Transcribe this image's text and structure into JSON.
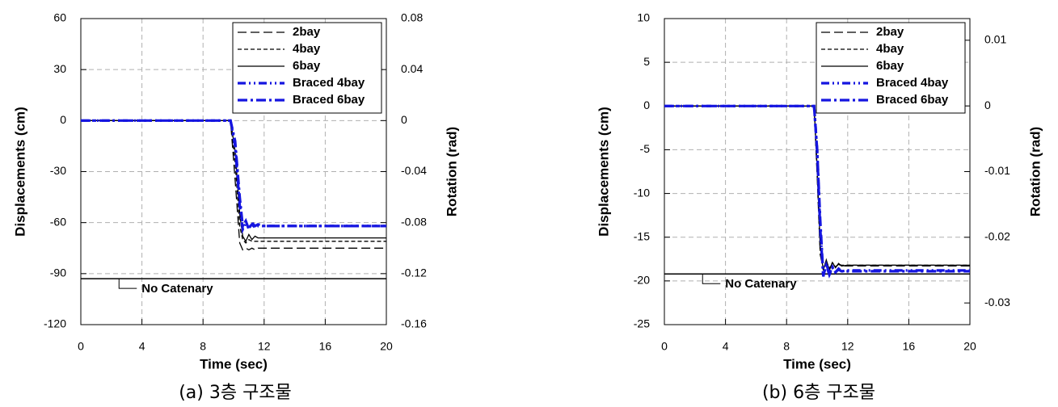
{
  "chart_data": [
    {
      "type": "line",
      "caption": "(a) 3층 구조물",
      "xlabel": "Time (sec)",
      "ylabel": "Displacements (cm)",
      "y2label": "Rotation (rad)",
      "xlim": [
        0,
        20
      ],
      "xticks": [
        0,
        4,
        8,
        12,
        16,
        20
      ],
      "ylim": [
        -120,
        60
      ],
      "yticks": [
        60,
        30,
        0,
        -30,
        -60,
        -90,
        -120
      ],
      "y2lim": [
        -0.16,
        0.08
      ],
      "y2ticks": [
        0.08,
        0.04,
        0,
        -0.04,
        -0.08,
        -0.12,
        -0.16
      ],
      "grid": true,
      "legend": "upper right",
      "x": [
        0,
        9.8,
        10.1,
        10.4,
        10.6,
        10.8,
        11.0,
        11.2,
        11.4,
        11.6,
        12,
        14,
        16,
        18,
        20
      ],
      "series": [
        {
          "name": "2bay",
          "color": "#000000",
          "style": "long-dash",
          "values": [
            0,
            0,
            -35,
            -72,
            -76,
            -75,
            -76,
            -75,
            -76,
            -75,
            -75,
            -75,
            -75,
            -75,
            -75
          ]
        },
        {
          "name": "4bay",
          "color": "#000000",
          "style": "short-dash",
          "values": [
            0,
            0,
            -25,
            -62,
            -70,
            -72,
            -70,
            -71,
            -71,
            -71,
            -71,
            -71,
            -71,
            -71,
            -71
          ]
        },
        {
          "name": "6bay",
          "color": "#000000",
          "style": "solid",
          "values": [
            0,
            0,
            -18,
            -55,
            -68,
            -71,
            -67,
            -70,
            -68,
            -69,
            -69,
            -69,
            -69,
            -69,
            -69
          ]
        },
        {
          "name": "Braced 4bay",
          "color": "#1515e0",
          "style": "dash-dot-dot",
          "values": [
            0,
            0,
            -15,
            -50,
            -64,
            -60,
            -63,
            -61,
            -63,
            -62,
            -62,
            -62,
            -62,
            -62,
            -62
          ]
        },
        {
          "name": "Braced 6bay",
          "color": "#1515e0",
          "style": "dash-dot",
          "values": [
            0,
            0,
            -12,
            -45,
            -62,
            -59,
            -64,
            -60,
            -62,
            -61,
            -62,
            -62,
            -62,
            -62,
            -62
          ]
        }
      ],
      "reference_line": {
        "label": "No Catenary",
        "value": -93,
        "label_x": 2.5
      }
    },
    {
      "type": "line",
      "caption": "(b) 6층 구조물",
      "xlabel": "Time (sec)",
      "ylabel": "Displacements (cm)",
      "y2label": "Rotation (rad)",
      "xlim": [
        0,
        20
      ],
      "xticks": [
        0,
        4,
        8,
        12,
        16,
        20
      ],
      "ylim": [
        -25,
        10
      ],
      "yticks": [
        10,
        5,
        0,
        -5,
        -10,
        -15,
        -20,
        -25
      ],
      "y2lim": [
        -0.0333,
        0.0133
      ],
      "y2ticks": [
        0.01,
        0,
        -0.01,
        -0.02,
        -0.03
      ],
      "grid": true,
      "legend": "upper right",
      "x": [
        0,
        9.8,
        10.0,
        10.2,
        10.4,
        10.6,
        10.8,
        11.0,
        11.2,
        11.4,
        11.6,
        12,
        14,
        16,
        18,
        20
      ],
      "series": [
        {
          "name": "2bay",
          "color": "#000000",
          "style": "long-dash",
          "values": [
            0,
            0,
            -8,
            -17,
            -18.6,
            -17.8,
            -18.6,
            -18,
            -18.4,
            -18.1,
            -18.3,
            -18.3,
            -18.3,
            -18.3,
            -18.3,
            -18.3
          ]
        },
        {
          "name": "4bay",
          "color": "#000000",
          "style": "short-dash",
          "values": [
            0,
            0,
            -7.5,
            -16.5,
            -18.7,
            -17.7,
            -18.6,
            -17.9,
            -18.4,
            -18.1,
            -18.2,
            -18.2,
            -18.2,
            -18.2,
            -18.2,
            -18.2
          ]
        },
        {
          "name": "6bay",
          "color": "#000000",
          "style": "solid",
          "values": [
            0,
            0,
            -7,
            -16,
            -18.8,
            -17.6,
            -18.8,
            -17.9,
            -18.5,
            -18,
            -18.3,
            -18.2,
            -18.2,
            -18.2,
            -18.2,
            -18.2
          ]
        },
        {
          "name": "Braced 4bay",
          "color": "#1515e0",
          "style": "dash-dot-dot",
          "values": [
            0,
            0,
            -5,
            -14,
            -19.5,
            -18,
            -19.2,
            -18.4,
            -19,
            -18.6,
            -18.9,
            -18.8,
            -18.8,
            -18.8,
            -18.8,
            -18.8
          ]
        },
        {
          "name": "Braced 6bay",
          "color": "#1515e0",
          "style": "dash-dot",
          "values": [
            0,
            0,
            -5,
            -13,
            -19.4,
            -18.2,
            -19.3,
            -18.5,
            -19,
            -18.7,
            -18.9,
            -18.9,
            -18.9,
            -18.9,
            -18.9,
            -18.9
          ]
        }
      ],
      "reference_line": {
        "label": "No Catenary",
        "value": -19.2,
        "label_x": 2.5
      }
    }
  ]
}
